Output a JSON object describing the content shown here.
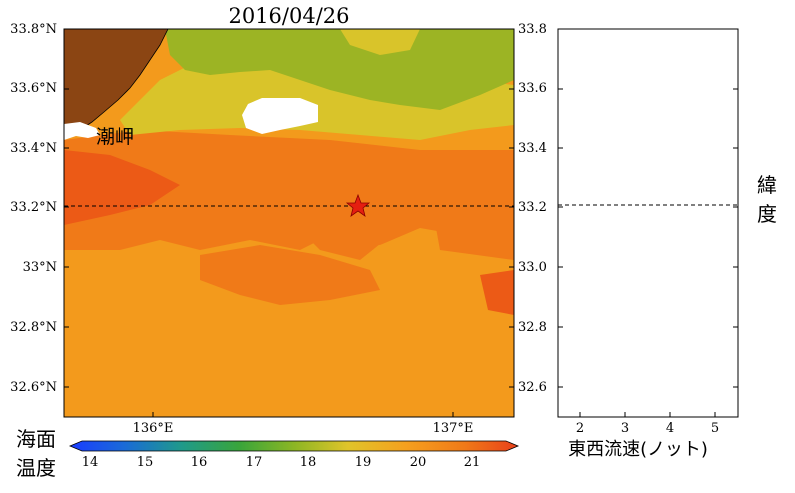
{
  "title": "2016/04/26",
  "map": {
    "lat_ticks": [
      "33.8°N",
      "33.6°N",
      "33.4°N",
      "33.2°N",
      "33°N",
      "32.8°N",
      "32.6°N"
    ],
    "lon_ticks": [
      "136°E",
      "137°E"
    ],
    "place_label": "潮岬",
    "marker_latitude": 33.21,
    "colors": {
      "land": "#8B4513",
      "sst_yellow_green": "#9CB424",
      "sst_yellow": "#D9C42A",
      "sst_orange": "#F39A1C",
      "sst_dark_orange": "#F07A18",
      "sst_red_orange": "#EC5A16",
      "star": "#E51E10"
    }
  },
  "colorbar": {
    "label": "海面\n温度",
    "label_line1": "海面",
    "label_line2": "温度",
    "ticks": [
      "14",
      "15",
      "16",
      "17",
      "18",
      "19",
      "20",
      "21"
    ]
  },
  "current_panel": {
    "lat_ticks": [
      "33.8",
      "33.6",
      "33.4",
      "33.2",
      "33.0",
      "32.8",
      "32.6"
    ],
    "x_ticks": [
      "2",
      "3",
      "4",
      "5"
    ],
    "xlabel": "東西流速(ノット)",
    "ylabel_line1": "緯",
    "ylabel_line2": "度"
  }
}
